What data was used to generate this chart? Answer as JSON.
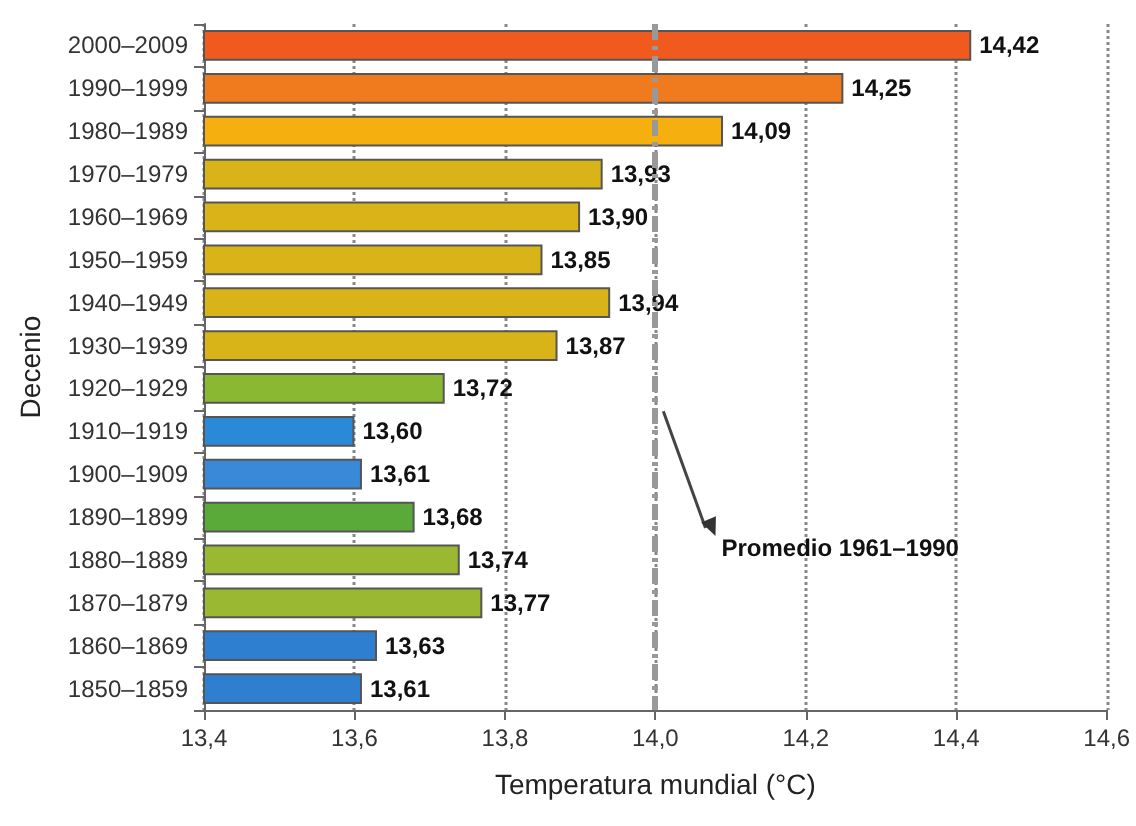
{
  "chart_data": {
    "type": "bar",
    "orientation": "horizontal",
    "xlabel": "Temperatura mundial (°C)",
    "ylabel": "Decenio",
    "categories": [
      "2000–2009",
      "1990–1999",
      "1980–1989",
      "1970–1979",
      "1960–1969",
      "1950–1959",
      "1940–1949",
      "1930–1939",
      "1920–1929",
      "1910–1919",
      "1900–1909",
      "1890–1899",
      "1880–1889",
      "1870–1879",
      "1860–1869",
      "1850–1859"
    ],
    "values": [
      14.42,
      14.25,
      14.09,
      13.93,
      13.9,
      13.85,
      13.94,
      13.87,
      13.72,
      13.6,
      13.61,
      13.68,
      13.74,
      13.77,
      13.63,
      13.61
    ],
    "value_labels": [
      "14,42",
      "14,25",
      "14,09",
      "13,93",
      "13,90",
      "13,85",
      "13,94",
      "13,87",
      "13,72",
      "13,60",
      "13,61",
      "13,68",
      "13,74",
      "13,77",
      "13,63",
      "13,61"
    ],
    "colors": [
      "#f05a1e",
      "#f07a1e",
      "#f5b010",
      "#d8b418",
      "#d8b418",
      "#d8b418",
      "#d8b418",
      "#d8b418",
      "#8ab832",
      "#2a8ad8",
      "#3a88d8",
      "#5aaa3a",
      "#9ab832",
      "#9ab832",
      "#2f7fd0",
      "#2f7fd0"
    ],
    "xlim": [
      13.4,
      14.6
    ],
    "xticks": [
      {
        "value": 13.4,
        "label": "13,4"
      },
      {
        "value": 13.6,
        "label": "13,6"
      },
      {
        "value": 13.8,
        "label": "13,8"
      },
      {
        "value": 14.0,
        "label": "14,0"
      },
      {
        "value": 14.2,
        "label": "14,2"
      },
      {
        "value": 14.4,
        "label": "14,4"
      },
      {
        "value": 14.6,
        "label": "14,6"
      }
    ],
    "grid": "x",
    "ref_lines": [
      {
        "axis": "x",
        "value": 14.0,
        "label": "Promedio 1961–1990",
        "line_style": "dashdot",
        "color": "#999999"
      }
    ]
  }
}
